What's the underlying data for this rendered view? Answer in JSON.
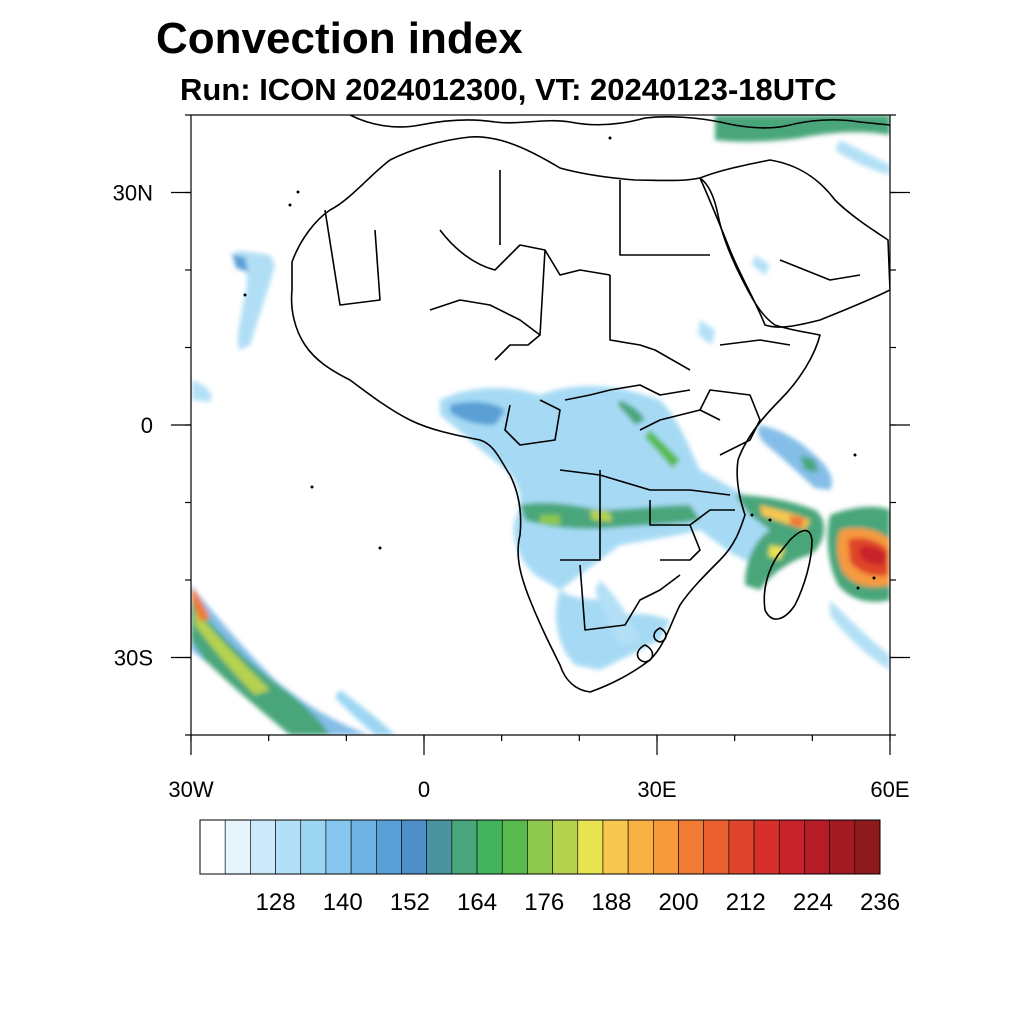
{
  "title": "Convection index",
  "subtitle": "Run: ICON 2024012300,  VT: 20240123-18UTC",
  "map": {
    "lon_range": [
      -30,
      60
    ],
    "lat_range": [
      -40,
      40
    ],
    "lat_labels": [
      {
        "lat": 30,
        "text": "30N"
      },
      {
        "lat": 0,
        "text": "0"
      },
      {
        "lat": -30,
        "text": "30S"
      }
    ],
    "lon_labels": [
      {
        "lon": -30,
        "text": "30W"
      },
      {
        "lon": 0,
        "text": "0"
      },
      {
        "lon": 30,
        "text": "30E"
      },
      {
        "lon": 60,
        "text": "60E"
      }
    ]
  },
  "colorbar": {
    "labels": [
      "128",
      "140",
      "152",
      "164",
      "176",
      "188",
      "200",
      "212",
      "224",
      "236"
    ],
    "colors": [
      "#ffffff",
      "#e6f5fc",
      "#cbe9f8",
      "#b3e0f6",
      "#9cd6f3",
      "#85c7ee",
      "#6fb3e4",
      "#5a9fd6",
      "#4f8fc9",
      "#4a94a0",
      "#48a67a",
      "#44b35f",
      "#58ba4c",
      "#8ec84e",
      "#b6d24f",
      "#e8e351",
      "#f6c84f",
      "#f8b145",
      "#f69a3c",
      "#f07b35",
      "#e95f2f",
      "#df442c",
      "#d72f2c",
      "#c8222a",
      "#b51c26",
      "#a31a23",
      "#8f1a1e"
    ]
  }
}
